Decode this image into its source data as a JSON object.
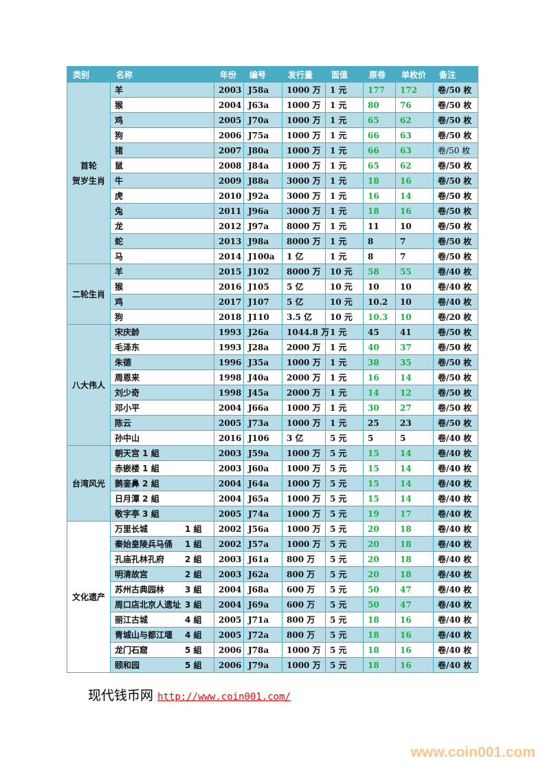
{
  "headers": [
    "类别",
    "名称",
    "年份",
    "编号",
    "发行量",
    "面值",
    "原卷",
    "单枚价",
    "备注"
  ],
  "categories": [
    {
      "label": "首轮\n贺岁生肖",
      "rows": [
        {
          "name": "羊",
          "year": "2003",
          "code": "J58a",
          "issue": "1000 万",
          "face": "1 元",
          "roll": "177",
          "single": "172",
          "note": "卷/50 枚",
          "green": true
        },
        {
          "name": "猴",
          "year": "2004",
          "code": "J63a",
          "issue": "1000 万",
          "face": "1 元",
          "roll": "80",
          "single": "76",
          "note": "卷/50 枚",
          "green": true
        },
        {
          "name": "鸡",
          "year": "2005",
          "code": "J70a",
          "issue": "1000 万",
          "face": "1 元",
          "roll": "65",
          "single": "62",
          "note": "卷/50 枚",
          "green": true
        },
        {
          "name": "狗",
          "year": "2006",
          "code": "J75a",
          "issue": "1000 万",
          "face": "1 元",
          "roll": "66",
          "single": "63",
          "note": "卷/50 枚",
          "green": true
        },
        {
          "name": "猪",
          "year": "2007",
          "code": "J80a",
          "issue": "1000 万",
          "face": "1 元",
          "roll": "66",
          "single": "63",
          "note": "卷/50 枚",
          "green": true,
          "note_light": true
        },
        {
          "name": "鼠",
          "year": "2008",
          "code": "J84a",
          "issue": "1000 万",
          "face": "1 元",
          "roll": "65",
          "single": "62",
          "note": "卷/50 枚",
          "green": true
        },
        {
          "name": "牛",
          "year": "2009",
          "code": "J88a",
          "issue": "3000 万",
          "face": "1 元",
          "roll": "18",
          "single": "16",
          "note": "卷/50 枚",
          "green": true
        },
        {
          "name": "虎",
          "year": "2010",
          "code": "J92a",
          "issue": "3000 万",
          "face": "1 元",
          "roll": "16",
          "single": "14",
          "note": "卷/50 枚",
          "green": true
        },
        {
          "name": "兔",
          "year": "2011",
          "code": "J96a",
          "issue": "3000 万",
          "face": "1 元",
          "roll": "18",
          "single": "16",
          "note": "卷/50 枚",
          "green": true
        },
        {
          "name": "龙",
          "year": "2012",
          "code": "J97a",
          "issue": "8000 万",
          "face": "1 元",
          "roll": "11",
          "single": "10",
          "note": "卷/50 枚",
          "green": false
        },
        {
          "name": "蛇",
          "year": "2013",
          "code": "J98a",
          "issue": "8000 万",
          "face": "1 元",
          "roll": "8",
          "single": "7",
          "note": "卷/50 枚",
          "green": false
        },
        {
          "name": "马",
          "year": "2014",
          "code": "J100a",
          "issue": "1 亿",
          "face": "1 元",
          "roll": "8",
          "single": "7",
          "note": "卷/50 枚",
          "green": false
        }
      ]
    },
    {
      "label": "二轮生肖",
      "rows": [
        {
          "name": "羊",
          "year": "2015",
          "code": "J102",
          "issue": "8000 万",
          "face": "10 元",
          "roll": "58",
          "single": "55",
          "note": "卷/40 枚",
          "green": true
        },
        {
          "name": "猴",
          "year": "2016",
          "code": "J105",
          "issue": "5 亿",
          "face": "10 元",
          "roll": "10",
          "single": "10",
          "note": "卷/40 枚",
          "green": false
        },
        {
          "name": "鸡",
          "year": "2017",
          "code": "J107",
          "issue": "5 亿",
          "face": "10 元",
          "roll": "10.2",
          "single": "10",
          "note": "卷/40 枚",
          "green": false
        },
        {
          "name": "狗",
          "year": "2018",
          "code": "J110",
          "issue": "3.5 亿",
          "face": "10 元",
          "roll": "10.3",
          "single": "10",
          "note": "卷/20 枚",
          "green": true
        }
      ]
    },
    {
      "label": "八大伟人",
      "rows": [
        {
          "name": "宋庆龄",
          "year": "1993",
          "code": "J26a",
          "issue": "1044.8 万",
          "face": "1 元",
          "roll": "45",
          "single": "41",
          "note": "卷/50 枚",
          "green": false
        },
        {
          "name": "毛泽东",
          "year": "1993",
          "code": "J28a",
          "issue": "2000 万",
          "face": "1 元",
          "roll": "40",
          "single": "37",
          "note": "卷/50 枚",
          "green": true
        },
        {
          "name": "朱德",
          "year": "1996",
          "code": "J35a",
          "issue": "1000 万",
          "face": "1 元",
          "roll": "38",
          "single": "35",
          "note": "卷/50 枚",
          "green": true
        },
        {
          "name": "周恩来",
          "year": "1998",
          "code": "J40a",
          "issue": "2000 万",
          "face": "1 元",
          "roll": "16",
          "single": "14",
          "note": "卷/50 枚",
          "green": true
        },
        {
          "name": "刘少奇",
          "year": "1998",
          "code": "J45a",
          "issue": "2000 万",
          "face": "1 元",
          "roll": "14",
          "single": "12",
          "note": "卷/50 枚",
          "green": true
        },
        {
          "name": "邓小平",
          "year": "2004",
          "code": "J66a",
          "issue": "1000 万",
          "face": "1 元",
          "roll": "30",
          "single": "27",
          "note": "卷/50 枚",
          "green": true
        },
        {
          "name": "陈云",
          "year": "2005",
          "code": "J73a",
          "issue": "1000 万",
          "face": "1 元",
          "roll": "25",
          "single": "23",
          "note": "卷/50 枚",
          "green": false
        },
        {
          "name": "孙中山",
          "year": "2016",
          "code": "J106",
          "issue": "3 亿",
          "face": "5 元",
          "roll": "5",
          "single": "5",
          "note": "卷/40 枚",
          "green": false
        }
      ]
    },
    {
      "label": "台湾风光",
      "rows": [
        {
          "name": "朝天宫 1 組",
          "year": "2003",
          "code": "J59a",
          "issue": "1000 万",
          "face": "5 元",
          "roll": "15",
          "single": "14",
          "note": "卷/40 枚",
          "green": true
        },
        {
          "name": "赤嵌楼 1 組",
          "year": "2003",
          "code": "J60a",
          "issue": "1000 万",
          "face": "5 元",
          "roll": "15",
          "single": "14",
          "note": "卷/40 枚",
          "green": true
        },
        {
          "name": "鹅銮鼻 2 組",
          "year": "2004",
          "code": "J64a",
          "issue": "1000 万",
          "face": "5 元",
          "roll": "15",
          "single": "14",
          "note": "卷/40 枚",
          "green": true
        },
        {
          "name": "日月潭 2 組",
          "year": "2004",
          "code": "J65a",
          "issue": "1000 万",
          "face": "5 元",
          "roll": "15",
          "single": "14",
          "note": "卷/40 枚",
          "green": true
        },
        {
          "name": "敬字亭 3 組",
          "year": "2005",
          "code": "J74a",
          "issue": "1000 万",
          "face": "5 元",
          "roll": "19",
          "single": "17",
          "note": "卷/40 枚",
          "green": true
        }
      ]
    },
    {
      "label": "文化遗产",
      "rows": [
        {
          "name": "万里长城",
          "group": "1 組",
          "year": "2002",
          "code": "J56a",
          "issue": "1000 万",
          "face": "5 元",
          "roll": "20",
          "single": "18",
          "note": "卷/40 枚",
          "green": true
        },
        {
          "name": "秦始皇陵兵马俑",
          "group": "1 組",
          "year": "2002",
          "code": "J57a",
          "issue": "1000 万",
          "face": "5 元",
          "roll": "20",
          "single": "18",
          "note": "卷/40 枚",
          "green": true
        },
        {
          "name": "孔庙孔林孔府",
          "group": "2 組",
          "year": "2003",
          "code": "J61a",
          "issue": "800 万",
          "face": "5 元",
          "roll": "20",
          "single": "18",
          "note": "卷/40 枚",
          "green": true
        },
        {
          "name": "明清故宫",
          "group": "2 組",
          "year": "2003",
          "code": "J62a",
          "issue": "800 万",
          "face": "5 元",
          "roll": "20",
          "single": "18",
          "note": "卷/40 枚",
          "green": true
        },
        {
          "name": "苏州古典园林",
          "group": "3 組",
          "year": "2004",
          "code": "J68a",
          "issue": "600 万",
          "face": "5 元",
          "roll": "50",
          "single": "47",
          "note": "卷/40 枚",
          "green": true
        },
        {
          "name": "周口店北京人遗址",
          "group": "3 組",
          "year": "2004",
          "code": "J69a",
          "issue": "600 万",
          "face": "5 元",
          "roll": "50",
          "single": "47",
          "note": "卷/40 枚",
          "green": true
        },
        {
          "name": "丽江古城",
          "group": "4 組",
          "year": "2005",
          "code": "J71a",
          "issue": "800 万",
          "face": "5 元",
          "roll": "18",
          "single": "16",
          "note": "卷/40 枚",
          "green": true
        },
        {
          "name": "青城山与都江堰",
          "group": "4 組",
          "year": "2005",
          "code": "J72a",
          "issue": "800 万",
          "face": "5 元",
          "roll": "18",
          "single": "16",
          "note": "卷/40 枚",
          "green": true
        },
        {
          "name": "龙门石窟",
          "group": "5 組",
          "year": "2006",
          "code": "J78a",
          "issue": "1000 万",
          "face": "5 元",
          "roll": "18",
          "single": "16",
          "note": "卷/40 枚",
          "green": true
        },
        {
          "name": "颐和园",
          "group": "5 組",
          "year": "2006",
          "code": "J79a",
          "issue": "1000 万",
          "face": "5 元",
          "roll": "18",
          "single": "16",
          "note": "卷/40 枚",
          "green": true
        }
      ]
    }
  ],
  "footer": {
    "site_name": "现代钱币网",
    "link": "http://www.coin001.com/"
  },
  "brand_watermark": "www.coin001.com",
  "colors": {
    "header": "#4bacc6",
    "band": "#b7dde8",
    "price_green": "#1faa44",
    "link": "#e00000",
    "brand": "#fbc48c"
  }
}
